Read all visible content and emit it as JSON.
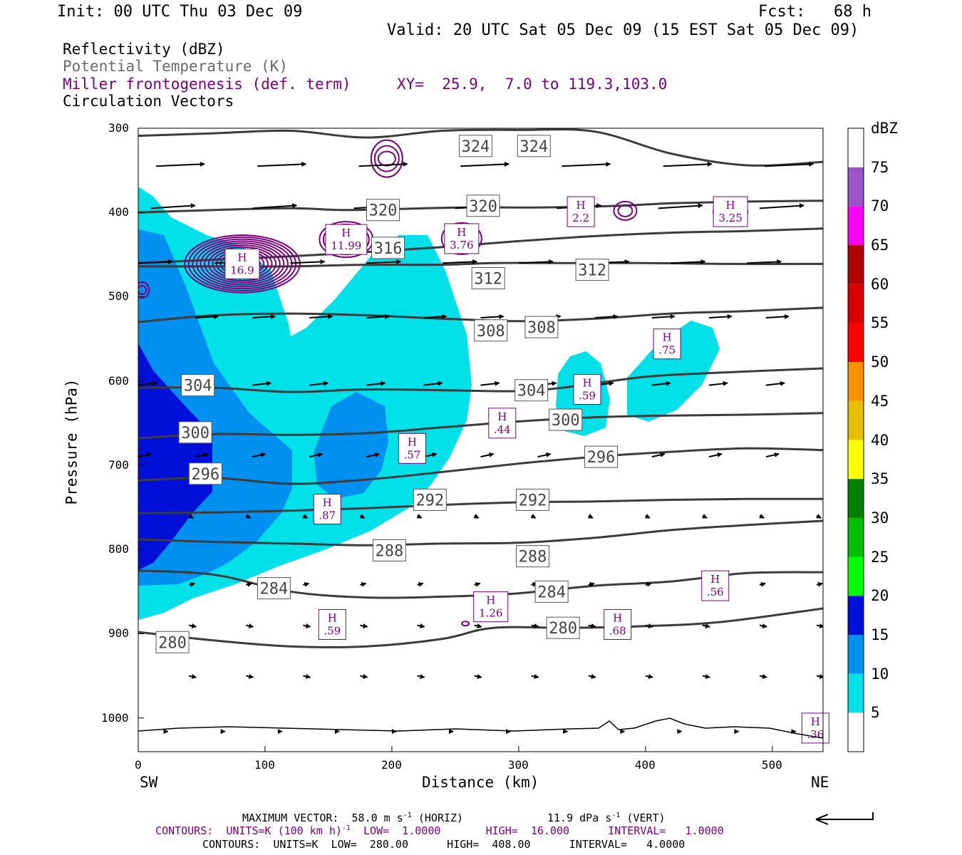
{
  "header": {
    "init": "Init: 00 UTC Thu 03 Dec 09",
    "fcst": "Fcst:   68 h",
    "valid": "Valid: 20 UTC Sat 05 Dec 09 (15 EST Sat 05 Dec 09)"
  },
  "fields": {
    "reflectivity": "Reflectivity (dBZ)",
    "theta": "Potential Temperature (K)",
    "miller": "Miller frontogenesis (def. term)",
    "xy": "XY=  25.9,  7.0 to 119.3,103.0",
    "vectors": "Circulation Vectors"
  },
  "colors": {
    "miller": "#7b0080",
    "theta": "#3c3c3c",
    "theta_label": "#444444",
    "refl_5": "#00e0e8",
    "refl_10": "#0090f0",
    "refl_15": "#0010d8"
  },
  "colorbar": {
    "title": "dBZ",
    "labels": [
      "5",
      "10",
      "15",
      "20",
      "25",
      "30",
      "35",
      "40",
      "45",
      "50",
      "55",
      "60",
      "65",
      "70",
      "75"
    ],
    "colors": [
      "#ffffff",
      "#00e0e8",
      "#0090f0",
      "#0010d8",
      "#00ff00",
      "#00c000",
      "#008000",
      "#ffff00",
      "#e6c000",
      "#ff9000",
      "#ff0000",
      "#d80000",
      "#b00000",
      "#ff00ff",
      "#9a55c8",
      "#ffffff"
    ]
  },
  "axes": {
    "ylabel": "Pressure (hPa)",
    "xlabel": "Distance (km)",
    "left_end": "SW",
    "right_end": "NE",
    "x_ticks": [
      "0",
      "100",
      "200",
      "300",
      "400",
      "500"
    ],
    "y_ticks": [
      "300",
      "400",
      "500",
      "600",
      "700",
      "800",
      "900",
      "1000"
    ]
  },
  "footer": {
    "max_vector_label": "MAXIMUM VECTOR:  58.0 m s",
    "max_vector_exp": "-1",
    "max_vector_horiz": " (HORIZ)",
    "max_vector_vert": "11.9 dPa s",
    "max_vector_vert_exp": "-1",
    "max_vector_vert_end": " (VERT)",
    "contours1_a": "CONTOURS:  UNITS=K (100 km h)",
    "contours1_exp": "-1",
    "contours1_b": "  LOW=  1.0000       HIGH=  16.000      INTERVAL=   1.0000",
    "contours2": "CONTOURS:  UNITS=K  LOW=  280.00      HIGH=  408.00      INTERVAL=   4.0000"
  },
  "chart_data": {
    "type": "cross-section",
    "x": {
      "label": "Distance (km)",
      "range": [
        0,
        540
      ],
      "ticks": [
        0,
        100,
        200,
        300,
        400,
        500
      ]
    },
    "y": {
      "label": "Pressure (hPa)",
      "range": [
        300,
        1040
      ],
      "ticks": [
        300,
        400,
        500,
        600,
        700,
        800,
        900,
        1000
      ],
      "inverted": true
    },
    "theta_contours": [
      {
        "label": "324",
        "points": [
          [
            0,
            309
          ],
          [
            60,
            306
          ],
          [
            120,
            303
          ],
          [
            180,
            311
          ],
          [
            240,
            303
          ],
          [
            300,
            302
          ],
          [
            360,
            304
          ],
          [
            420,
            330
          ],
          [
            480,
            344
          ],
          [
            540,
            340
          ]
        ],
        "label_at": [
          [
            266,
            321
          ],
          [
            312,
            321
          ]
        ]
      },
      {
        "label": "320",
        "points": [
          [
            0,
            400
          ],
          [
            60,
            397
          ],
          [
            120,
            395
          ],
          [
            160,
            397
          ],
          [
            200,
            396
          ],
          [
            260,
            394
          ],
          [
            320,
            394
          ],
          [
            380,
            392
          ],
          [
            420,
            389
          ],
          [
            480,
            387
          ],
          [
            540,
            386
          ]
        ],
        "label_at": [
          [
            193,
            397
          ],
          [
            272,
            392
          ]
        ]
      },
      {
        "label": "316",
        "points": [
          [
            0,
            460
          ],
          [
            60,
            456
          ],
          [
            120,
            452
          ],
          [
            180,
            447
          ],
          [
            240,
            441
          ],
          [
            300,
            434
          ],
          [
            360,
            428
          ],
          [
            420,
            424
          ],
          [
            480,
            422
          ],
          [
            540,
            419
          ]
        ],
        "label_at": [
          [
            197,
            442
          ]
        ]
      },
      {
        "label": "312",
        "points": [
          [
            0,
            464
          ],
          [
            60,
            464
          ],
          [
            120,
            464
          ],
          [
            180,
            462
          ],
          [
            240,
            462
          ],
          [
            280,
            460
          ],
          [
            340,
            460
          ],
          [
            400,
            460
          ],
          [
            460,
            461
          ],
          [
            540,
            461
          ]
        ],
        "label_at": [
          [
            276,
            478
          ],
          [
            358,
            468
          ]
        ]
      },
      {
        "label": "308",
        "points": [
          [
            0,
            530
          ],
          [
            60,
            522
          ],
          [
            120,
            520
          ],
          [
            180,
            522
          ],
          [
            240,
            526
          ],
          [
            300,
            529
          ],
          [
            360,
            526
          ],
          [
            420,
            520
          ],
          [
            480,
            517
          ],
          [
            540,
            513
          ]
        ],
        "label_at": [
          [
            278,
            540
          ],
          [
            318,
            536
          ]
        ]
      },
      {
        "label": "304",
        "points": [
          [
            0,
            608
          ],
          [
            60,
            608
          ],
          [
            120,
            613
          ],
          [
            180,
            610
          ],
          [
            240,
            611
          ],
          [
            300,
            612
          ],
          [
            340,
            607
          ],
          [
            400,
            595
          ],
          [
            460,
            590
          ],
          [
            540,
            585
          ]
        ],
        "label_at": [
          [
            47,
            605
          ],
          [
            310,
            611
          ]
        ]
      },
      {
        "label": "300",
        "points": [
          [
            0,
            668
          ],
          [
            60,
            663
          ],
          [
            120,
            664
          ],
          [
            180,
            662
          ],
          [
            240,
            655
          ],
          [
            300,
            648
          ],
          [
            360,
            643
          ],
          [
            420,
            641
          ],
          [
            480,
            640
          ],
          [
            540,
            638
          ]
        ],
        "label_at": [
          [
            45,
            661
          ],
          [
            337,
            646
          ]
        ]
      },
      {
        "label": "296",
        "points": [
          [
            0,
            718
          ],
          [
            60,
            715
          ],
          [
            120,
            722
          ],
          [
            180,
            717
          ],
          [
            240,
            708
          ],
          [
            300,
            698
          ],
          [
            360,
            690
          ],
          [
            420,
            684
          ],
          [
            480,
            680
          ],
          [
            540,
            682
          ]
        ],
        "label_at": [
          [
            53,
            710
          ],
          [
            365,
            690
          ]
        ]
      },
      {
        "label": "292",
        "points": [
          [
            0,
            757
          ],
          [
            60,
            756
          ],
          [
            120,
            754
          ],
          [
            180,
            751
          ],
          [
            240,
            747
          ],
          [
            300,
            744
          ],
          [
            360,
            743
          ],
          [
            420,
            741
          ],
          [
            480,
            740
          ],
          [
            540,
            740
          ]
        ],
        "label_at": [
          [
            230,
            741
          ],
          [
            311,
            741
          ]
        ]
      },
      {
        "label": "288",
        "points": [
          [
            0,
            788
          ],
          [
            60,
            791
          ],
          [
            120,
            793
          ],
          [
            180,
            795
          ],
          [
            240,
            793
          ],
          [
            300,
            792
          ],
          [
            360,
            786
          ],
          [
            420,
            777
          ],
          [
            480,
            771
          ],
          [
            540,
            766
          ]
        ],
        "label_at": [
          [
            198,
            801
          ],
          [
            311,
            808
          ]
        ]
      },
      {
        "label": "284",
        "points": [
          [
            0,
            825
          ],
          [
            60,
            830
          ],
          [
            120,
            850
          ],
          [
            180,
            857
          ],
          [
            240,
            856
          ],
          [
            300,
            852
          ],
          [
            360,
            843
          ],
          [
            420,
            838
          ],
          [
            480,
            828
          ],
          [
            540,
            827
          ]
        ],
        "label_at": [
          [
            107,
            846
          ],
          [
            326,
            850
          ]
        ]
      },
      {
        "label": "280",
        "points": [
          [
            0,
            898
          ],
          [
            60,
            908
          ],
          [
            120,
            915
          ],
          [
            180,
            915
          ],
          [
            240,
            906
          ],
          [
            280,
            893
          ],
          [
            340,
            893
          ],
          [
            400,
            891
          ],
          [
            460,
            886
          ],
          [
            540,
            870
          ]
        ],
        "label_at": [
          [
            27,
            910
          ],
          [
            335,
            893
          ]
        ]
      }
    ],
    "reflectivity_levels_dbz": [
      5,
      10,
      15
    ],
    "miller_highs": [
      {
        "value": "16.9",
        "x": 82,
        "p": 461
      },
      {
        "value": "11.99",
        "x": 164,
        "p": 432
      },
      {
        "value": "3.76",
        "x": 255,
        "p": 431
      },
      {
        "value": "2.2",
        "x": 349,
        "p": 399
      },
      {
        "value": "3.25",
        "x": 467,
        "p": 399
      },
      {
        "value": ".75",
        "x": 417,
        "p": 556
      },
      {
        "value": ".59",
        "x": 354,
        "p": 610
      },
      {
        "value": ".44",
        "x": 287,
        "p": 650
      },
      {
        "value": ".57",
        "x": 216,
        "p": 680
      },
      {
        "value": ".87",
        "x": 149,
        "p": 752
      },
      {
        "value": ".56",
        "x": 455,
        "p": 843
      },
      {
        "value": "1.26",
        "x": 278,
        "p": 868
      },
      {
        "value": ".59",
        "x": 153,
        "p": 889
      },
      {
        "value": ".68",
        "x": 378,
        "p": 889
      },
      {
        "value": ".36",
        "x": 534,
        "p": 1012
      }
    ]
  }
}
